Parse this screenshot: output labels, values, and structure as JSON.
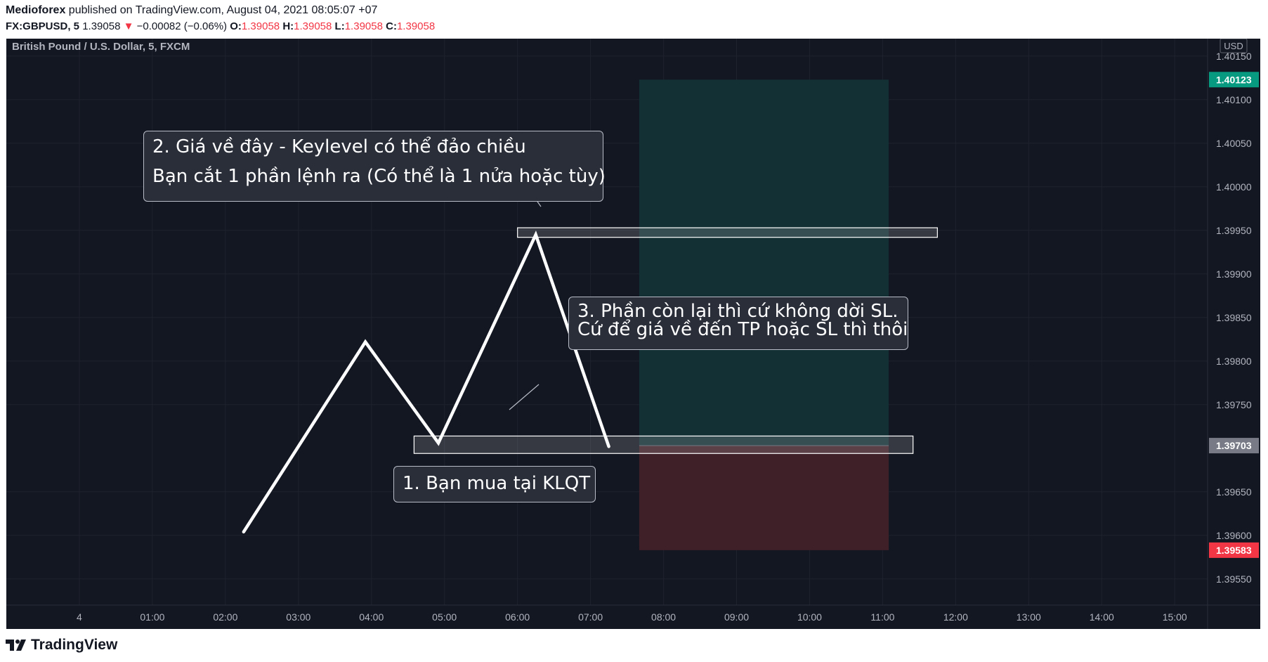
{
  "header": {
    "author": "Medioforex",
    "published_text": "published on TradingView.com, August 04, 2021 08:05:07 +07",
    "symbol": "FX:GBPUSD, 5",
    "last": "1.39058",
    "change": "−0.00082 (−0.06%)",
    "o_label": "O:",
    "o_value": "1.39058",
    "h_label": "H:",
    "h_value": "1.39058",
    "l_label": "L:",
    "l_value": "1.39058",
    "c_label": "C:",
    "c_value": "1.39058"
  },
  "chart_title": "British Pound / U.S. Dollar, 5, FXCM",
  "currency": "USD",
  "logo_text": "TradingView",
  "colors": {
    "bg": "#131722",
    "grid": "#1e222d",
    "axis_text": "#b2b5be",
    "profit_fill": "#133034",
    "loss_fill": "#3f1f28",
    "tp_badge": "#089981",
    "sl_badge": "#f23645",
    "entry_badge": "#787b86",
    "line": "#ffffff"
  },
  "callouts": {
    "tp": {
      "line1": "2. Giá về đây - Keylevel có thể đảo chiều",
      "line2": "Bạn cắt 1 phần lệnh ra (Có thể là 1 nửa hoặc tùy)"
    },
    "rest": {
      "line1": "3. Phần còn lại thì cứ không dời SL.",
      "line2": "Cứ để giá về đến TP hoặc SL thì thôi"
    },
    "buy": {
      "line1": "1. Bạn mua tại KLQT"
    }
  },
  "chart_data": {
    "type": "line",
    "xlabel": "",
    "ylabel": "",
    "x_ticks": [
      "4",
      "01:00",
      "02:00",
      "03:00",
      "04:00",
      "05:00",
      "06:00",
      "07:00",
      "08:00",
      "09:00",
      "10:00",
      "11:00",
      "12:00",
      "13:00",
      "14:00",
      "15:00"
    ],
    "y_ticks": [
      "1.40150",
      "1.40100",
      "1.40050",
      "1.40000",
      "1.39950",
      "1.39900",
      "1.39850",
      "1.39800",
      "1.39750",
      "1.39650",
      "1.39600",
      "1.39550"
    ],
    "ylim": [
      1.3952,
      1.4017
    ],
    "series": [
      {
        "values": [
          {
            "x": "02:15",
            "y": 1.39604
          },
          {
            "x": "03:55",
            "y": 1.39822
          },
          {
            "x": "04:55",
            "y": 1.39706
          },
          {
            "x": "06:15",
            "y": 1.39945
          },
          {
            "x": "07:15",
            "y": 1.39702
          }
        ]
      }
    ],
    "position": {
      "entry": 1.39703,
      "take_profit": 1.40123,
      "stop_loss": 1.39583,
      "start_time": "07:40",
      "end_time": "11:05",
      "entry_label": "1.39703",
      "tp_label": "1.40123",
      "sl_label": "1.39583"
    },
    "zones": [
      {
        "from_time": "06:00",
        "to_time": "11:45",
        "y_low": 1.39942,
        "y_high": 1.39953
      },
      {
        "from_time": "04:35",
        "to_time": "11:25",
        "y_low": 1.39694,
        "y_high": 1.39714
      }
    ],
    "grid": true
  }
}
